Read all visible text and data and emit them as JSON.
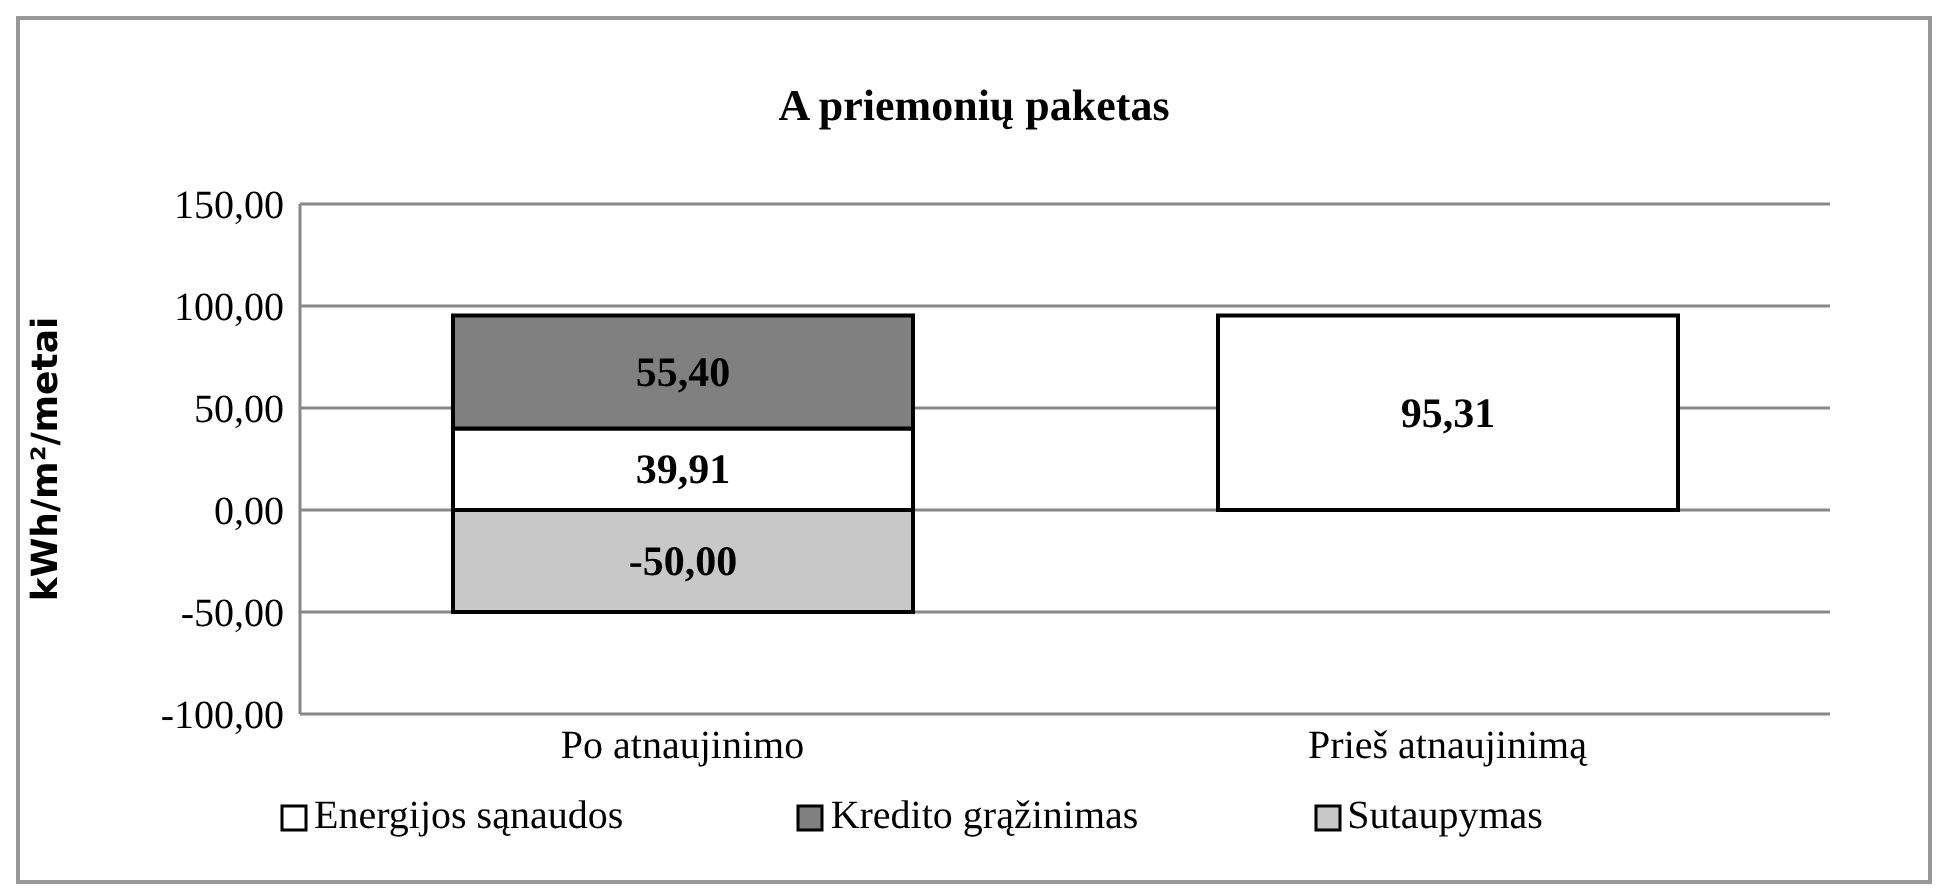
{
  "chart_data": {
    "type": "bar",
    "title": "A priemonių paketas",
    "ylabel": "kWh/m²/metai",
    "categories": [
      "Po atnaujinimo",
      "Prieš atnaujinimą"
    ],
    "stacked": true,
    "series": [
      {
        "name": "Energijos sąnaudos",
        "color": "#ffffff",
        "values": [
          39.91,
          95.31
        ],
        "value_labels": [
          "39,91",
          "95,31"
        ]
      },
      {
        "name": "Kredito grąžinimas",
        "color": "#808080",
        "values": [
          55.4,
          null
        ],
        "value_labels": [
          "55,40",
          null
        ]
      },
      {
        "name": "Sutaupymas",
        "color": "#c8c8c8",
        "values": [
          -50,
          null
        ],
        "value_labels": [
          "-50,00",
          null
        ]
      }
    ],
    "ylim": [
      -100,
      150
    ],
    "yticks": [
      {
        "value": -100,
        "label": "-100,00"
      },
      {
        "value": -50,
        "label": "-50,00"
      },
      {
        "value": 0,
        "label": "0,00"
      },
      {
        "value": 50,
        "label": "50,00"
      },
      {
        "value": 100,
        "label": "100,00"
      },
      {
        "value": 150,
        "label": "150,00"
      }
    ],
    "grid": "y",
    "legend": "bottom"
  }
}
